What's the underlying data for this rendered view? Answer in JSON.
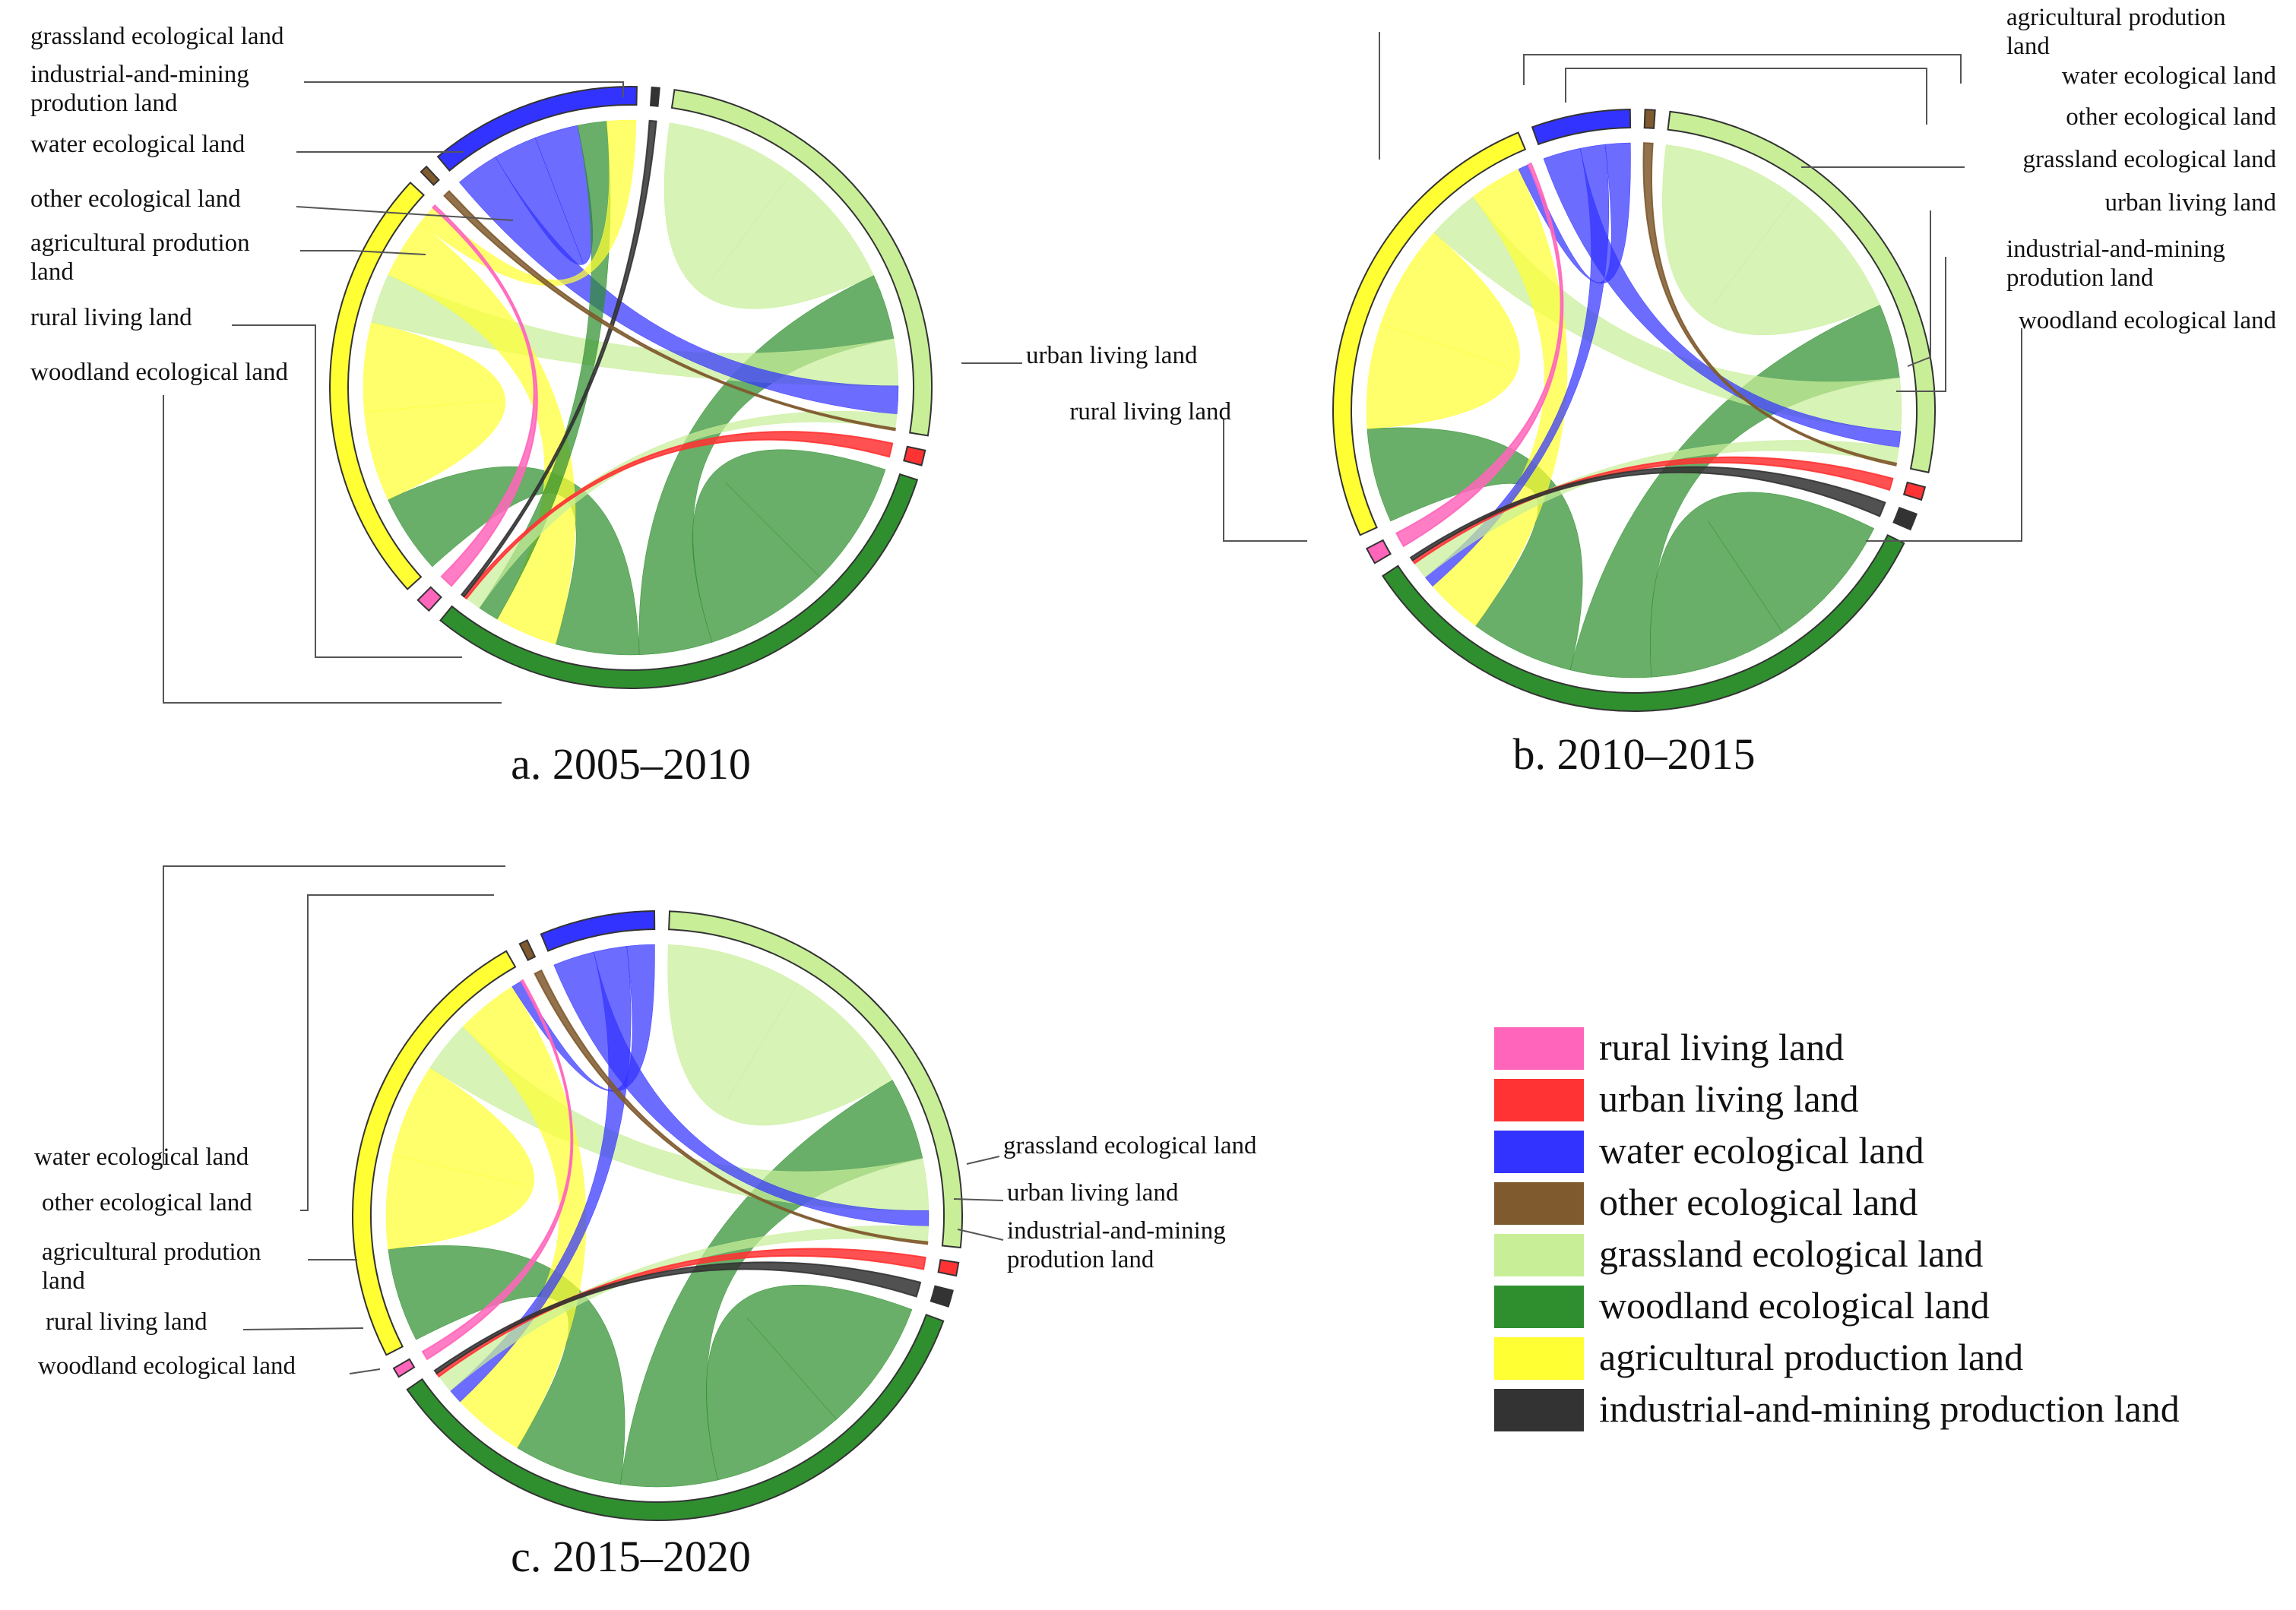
{
  "figure": {
    "legend": [
      {
        "key": "rural",
        "label": "rural living land",
        "color": "#FF66BB"
      },
      {
        "key": "urban",
        "label": "urban living land",
        "color": "#FF3333"
      },
      {
        "key": "water",
        "label": "water ecological land",
        "color": "#3333FF"
      },
      {
        "key": "other",
        "label": "other ecological land",
        "color": "#7F5A2E"
      },
      {
        "key": "grass",
        "label": "grassland ecological land",
        "color": "#C8EF98"
      },
      {
        "key": "wood",
        "label": "woodland ecological land",
        "color": "#2F8F2F"
      },
      {
        "key": "agri",
        "label": "agricultural production land",
        "color": "#FFFF33"
      },
      {
        "key": "indus",
        "label": "industrial-and-mining production land",
        "color": "#333333"
      }
    ]
  },
  "chart_data": [
    {
      "type": "chord",
      "title": "a. 2005–2010",
      "groups": [
        {
          "key": "indus",
          "label": "industrial-and-mining\nprodution land",
          "share": 0.5
        },
        {
          "key": "grass",
          "label": "grassland ecological land",
          "share": 31
        },
        {
          "key": "urban",
          "label": "urban living land",
          "share": 1
        },
        {
          "key": "wood",
          "label": "woodland ecological land",
          "share": 38
        },
        {
          "key": "rural",
          "label": "rural living land",
          "share": 1
        },
        {
          "key": "agri",
          "label": "agricultural prodution\nland",
          "share": 29
        },
        {
          "key": "other",
          "label": "other ecological land",
          "share": 0.5
        },
        {
          "key": "water",
          "label": "water ecological land",
          "share": 14
        }
      ],
      "chords": [
        {
          "from": "grass",
          "to": "grass",
          "value": 14
        },
        {
          "from": "wood",
          "to": "wood",
          "value": 12
        },
        {
          "from": "wood",
          "to": "grass",
          "value": 7
        },
        {
          "from": "wood",
          "to": "agri",
          "value": 8
        },
        {
          "from": "agri",
          "to": "agri",
          "value": 9
        },
        {
          "from": "grass",
          "to": "agri",
          "value": 5
        },
        {
          "from": "agri",
          "to": "wood",
          "value": 6
        },
        {
          "from": "water",
          "to": "grass",
          "value": 3
        },
        {
          "from": "water",
          "to": "water",
          "value": 3
        },
        {
          "from": "wood",
          "to": "water",
          "value": 2
        },
        {
          "from": "agri",
          "to": "water",
          "value": 2
        },
        {
          "from": "grass",
          "to": "wood",
          "value": 1.5
        },
        {
          "from": "urban",
          "to": "wood",
          "value": 0.3
        },
        {
          "from": "rural",
          "to": "agri",
          "value": 0.3
        },
        {
          "from": "indus",
          "to": "wood",
          "value": 0.3
        },
        {
          "from": "other",
          "to": "grass",
          "value": 0.2
        }
      ]
    },
    {
      "type": "chord",
      "title": "b. 2010–2015",
      "groups": [
        {
          "key": "grass",
          "label": "grassland ecological land",
          "share": 30
        },
        {
          "key": "urban",
          "label": "urban living land",
          "share": 0.8
        },
        {
          "key": "indus",
          "label": "industrial-and-mining\nprodution land",
          "share": 1
        },
        {
          "key": "wood",
          "label": "woodland ecological land",
          "share": 38
        },
        {
          "key": "rural",
          "label": "rural living land",
          "share": 1
        },
        {
          "key": "agri",
          "label": "agricultural prodution\nland",
          "share": 29
        },
        {
          "key": "water",
          "label": "water ecological land",
          "share": 6
        },
        {
          "key": "other",
          "label": "other ecological land",
          "share": 0.6
        }
      ],
      "chords": [
        {
          "from": "grass",
          "to": "grass",
          "value": 13
        },
        {
          "from": "wood",
          "to": "wood",
          "value": 12
        },
        {
          "from": "wood",
          "to": "grass",
          "value": 7
        },
        {
          "from": "wood",
          "to": "agri",
          "value": 9
        },
        {
          "from": "agri",
          "to": "agri",
          "value": 10
        },
        {
          "from": "grass",
          "to": "agri",
          "value": 5
        },
        {
          "from": "agri",
          "to": "wood",
          "value": 5
        },
        {
          "from": "water",
          "to": "grass",
          "value": 1.5
        },
        {
          "from": "water",
          "to": "wood",
          "value": 1
        },
        {
          "from": "water",
          "to": "agri",
          "value": 1
        },
        {
          "from": "grass",
          "to": "wood",
          "value": 1.5
        },
        {
          "from": "urban",
          "to": "wood",
          "value": 0.3
        },
        {
          "from": "indus",
          "to": "wood",
          "value": 0.3
        },
        {
          "from": "rural",
          "to": "agri",
          "value": 0.3
        },
        {
          "from": "other",
          "to": "grass",
          "value": 0.2
        }
      ]
    },
    {
      "type": "chord",
      "title": "c. 2015–2020",
      "groups": [
        {
          "key": "grass",
          "label": "grassland ecological land",
          "share": 30
        },
        {
          "key": "urban",
          "label": "urban living land",
          "share": 0.8
        },
        {
          "key": "indus",
          "label": "industrial-and-mining\nprodution land",
          "share": 1
        },
        {
          "key": "wood",
          "label": "woodland ecological land",
          "share": 40
        },
        {
          "key": "rural",
          "label": "rural living land",
          "share": 0.6
        },
        {
          "key": "agri",
          "label": "agricultural prodution\nland",
          "share": 28
        },
        {
          "key": "other",
          "label": "other ecological land",
          "share": 0.5
        },
        {
          "key": "water",
          "label": "water ecological land",
          "share": 7
        }
      ],
      "chords": [
        {
          "from": "grass",
          "to": "grass",
          "value": 13
        },
        {
          "from": "wood",
          "to": "wood",
          "value": 11
        },
        {
          "from": "wood",
          "to": "grass",
          "value": 8
        },
        {
          "from": "wood",
          "to": "agri",
          "value": 9
        },
        {
          "from": "agri",
          "to": "agri",
          "value": 9
        },
        {
          "from": "grass",
          "to": "agri",
          "value": 5
        },
        {
          "from": "agri",
          "to": "wood",
          "value": 6
        },
        {
          "from": "water",
          "to": "grass",
          "value": 1.5
        },
        {
          "from": "water",
          "to": "wood",
          "value": 1.2
        },
        {
          "from": "water",
          "to": "agri",
          "value": 1
        },
        {
          "from": "grass",
          "to": "wood",
          "value": 1.5
        },
        {
          "from": "urban",
          "to": "wood",
          "value": 0.3
        },
        {
          "from": "indus",
          "to": "wood",
          "value": 0.3
        },
        {
          "from": "rural",
          "to": "agri",
          "value": 0.2
        },
        {
          "from": "other",
          "to": "grass",
          "value": 0.2
        }
      ]
    }
  ]
}
